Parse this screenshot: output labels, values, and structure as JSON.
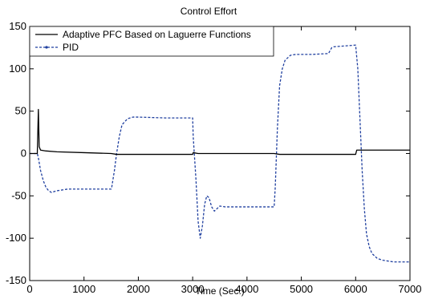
{
  "chart_data": {
    "type": "line",
    "title": "Control Effort",
    "xlabel": "Time (Sec.)",
    "ylabel": "",
    "xlim": [
      0,
      7000
    ],
    "ylim": [
      -150,
      150
    ],
    "xticks": [
      0,
      1000,
      2000,
      3000,
      4000,
      5000,
      6000,
      7000
    ],
    "yticks": [
      -150,
      -100,
      -50,
      0,
      50,
      100,
      150
    ],
    "xtick_labels": [
      "0",
      "1000",
      "2000",
      "3000",
      "4000",
      "5000",
      "6000",
      "7000"
    ],
    "ytick_labels": [
      "-150",
      "-100",
      "-50",
      "0",
      "50",
      "100",
      "150"
    ],
    "grid": false,
    "legend_position": "top-left",
    "series": [
      {
        "name": "Adaptive PFC Based on Laguerre Functions",
        "color": "#000000",
        "style": "solid",
        "x": [
          0,
          140,
          160,
          175,
          200,
          300,
          500,
          1000,
          1500,
          1600,
          2000,
          3000,
          3010,
          3100,
          4000,
          4500,
          4600,
          5000,
          6000,
          6020,
          6100,
          7000
        ],
        "y": [
          0,
          0,
          52,
          8,
          4,
          3,
          2,
          1,
          0,
          -1,
          -1,
          -1,
          1,
          0,
          0,
          0,
          -1,
          -1,
          -1,
          4,
          4,
          4
        ]
      },
      {
        "name": "PID",
        "color": "#1f3f9f",
        "style": "dashed",
        "x": [
          0,
          140,
          160,
          200,
          250,
          300,
          350,
          400,
          450,
          500,
          700,
          1000,
          1500,
          1510,
          1560,
          1600,
          1650,
          1700,
          1800,
          1900,
          2000,
          2500,
          3000,
          3010,
          3060,
          3100,
          3140,
          3180,
          3220,
          3260,
          3300,
          3350,
          3400,
          3450,
          3500,
          3600,
          3700,
          4000,
          4500,
          4520,
          4560,
          4600,
          4650,
          4700,
          4800,
          4900,
          5000,
          5200,
          5500,
          5560,
          5600,
          5800,
          6000,
          6040,
          6080,
          6120,
          6160,
          6200,
          6250,
          6300,
          6400,
          6500,
          6700,
          7000
        ],
        "y": [
          0,
          0,
          -5,
          -20,
          -32,
          -40,
          -44,
          -46,
          -45,
          -44,
          -42,
          -42,
          -42,
          -40,
          -20,
          0,
          20,
          34,
          41,
          43,
          43,
          42,
          42,
          20,
          -30,
          -80,
          -100,
          -85,
          -60,
          -50,
          -52,
          -63,
          -68,
          -65,
          -62,
          -63,
          -63,
          -63,
          -63,
          -40,
          30,
          80,
          100,
          110,
          116,
          117,
          117,
          117,
          118,
          125,
          126,
          127,
          128,
          100,
          40,
          -20,
          -65,
          -95,
          -110,
          -118,
          -124,
          -126,
          -128,
          -128
        ]
      }
    ]
  }
}
